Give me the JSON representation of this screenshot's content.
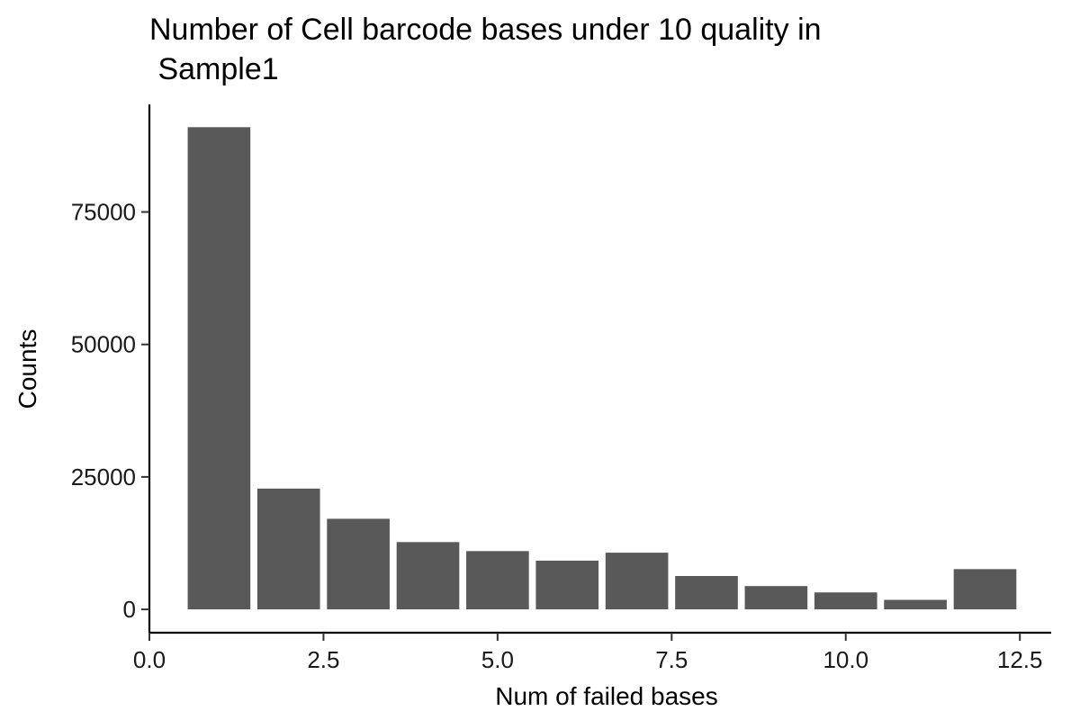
{
  "chart_data": {
    "type": "bar",
    "title_lines": [
      "Number of Cell barcode bases under 10 quality in",
      " Sample1"
    ],
    "xlabel": "Num of failed bases",
    "ylabel": "Counts",
    "x": [
      1,
      2,
      3,
      4,
      5,
      6,
      7,
      8,
      9,
      10,
      11,
      12
    ],
    "values": [
      91000,
      22800,
      17100,
      12700,
      11000,
      9200,
      10700,
      6300,
      4400,
      3200,
      1800,
      7600
    ],
    "xlim": [
      0,
      12.95
    ],
    "ylim": [
      -4400,
      95300
    ],
    "x_ticks": [
      0,
      2.5,
      5,
      7.5,
      10,
      12.5
    ],
    "x_tick_labels": [
      "0.0",
      "2.5",
      "5.0",
      "7.5",
      "10.0",
      "12.5"
    ],
    "y_ticks": [
      0,
      25000,
      50000,
      75000
    ],
    "y_tick_labels": [
      "0",
      "25000",
      "50000",
      "75000"
    ],
    "bar_color": "#595959",
    "grid": false,
    "legend": "none"
  }
}
